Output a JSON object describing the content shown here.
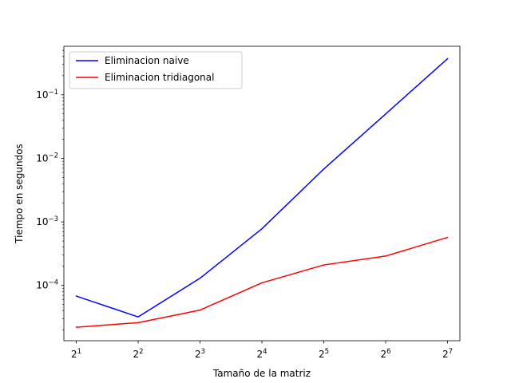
{
  "chart_data": {
    "type": "line",
    "title": "",
    "xlabel": "Tamaño de la matriz",
    "ylabel": "Tiempo en segundos",
    "x_scale": "log2",
    "y_scale": "log10",
    "x": [
      2,
      4,
      8,
      16,
      32,
      64,
      128
    ],
    "x_tick_labels": [
      {
        "base": "2",
        "exp": "1"
      },
      {
        "base": "2",
        "exp": "2"
      },
      {
        "base": "2",
        "exp": "3"
      },
      {
        "base": "2",
        "exp": "4"
      },
      {
        "base": "2",
        "exp": "5"
      },
      {
        "base": "2",
        "exp": "6"
      },
      {
        "base": "2",
        "exp": "7"
      }
    ],
    "y_tick_labels": [
      {
        "value": 0.0001,
        "base": "10",
        "exp": "−4"
      },
      {
        "value": 0.001,
        "base": "10",
        "exp": "−3"
      },
      {
        "value": 0.01,
        "base": "10",
        "exp": "−2"
      },
      {
        "value": 0.1,
        "base": "10",
        "exp": "−1"
      }
    ],
    "xlim": [
      1.74,
      147
    ],
    "ylim": [
      1.35e-05,
      0.58
    ],
    "grid": false,
    "legend_position": "upper-left",
    "series": [
      {
        "name": "Eliminacion naive",
        "color": "#0000ff",
        "values": [
          6.8e-05,
          3.2e-05,
          0.00013,
          0.00078,
          0.0068,
          0.05,
          0.37
        ]
      },
      {
        "name": "Eliminacion tridiagonal",
        "color": "#ff0000",
        "values": [
          2.2e-05,
          2.6e-05,
          4.1e-05,
          0.00011,
          0.00021,
          0.00029,
          0.00057
        ]
      }
    ]
  }
}
